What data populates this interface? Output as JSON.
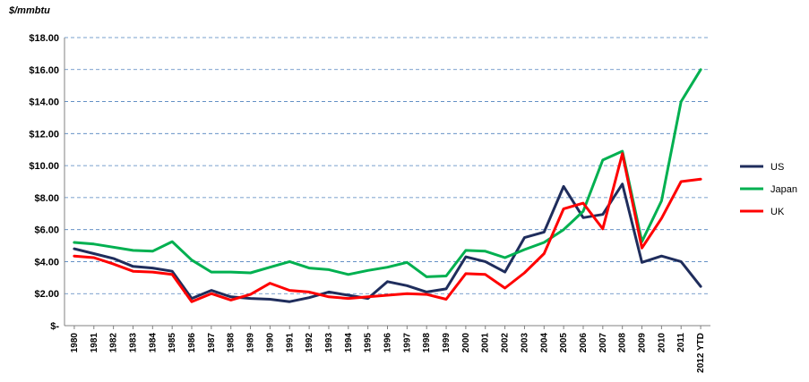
{
  "chart_data": {
    "type": "line",
    "unit_label": "$/mmbtu",
    "categories": [
      "1980",
      "1981",
      "1982",
      "1983",
      "1984",
      "1985",
      "1986",
      "1987",
      "1988",
      "1989",
      "1990",
      "1991",
      "1992",
      "1993",
      "1994",
      "1995",
      "1996",
      "1997",
      "1998",
      "1999",
      "2000",
      "2001",
      "2002",
      "2003",
      "2004",
      "2005",
      "2006",
      "2007",
      "2008",
      "2009",
      "2010",
      "2011",
      "2012 YTD"
    ],
    "y_ticks": [
      "$-",
      "$2.00",
      "$4.00",
      "$6.00",
      "$8.00",
      "$10.00",
      "$12.00",
      "$14.00",
      "$16.00",
      "$18.00"
    ],
    "ylim": [
      0,
      18
    ],
    "grid": true,
    "legend_position": "right",
    "series": [
      {
        "name": "US",
        "color": "#1f2d5c",
        "values": [
          4.8,
          4.5,
          4.2,
          3.7,
          3.6,
          3.4,
          1.7,
          2.2,
          1.8,
          1.7,
          1.65,
          1.5,
          1.75,
          2.1,
          1.9,
          1.7,
          2.75,
          2.5,
          2.1,
          2.3,
          4.3,
          4.0,
          3.35,
          5.5,
          5.85,
          8.7,
          6.75,
          6.95,
          8.85,
          3.95,
          4.35,
          4.0,
          2.45
        ]
      },
      {
        "name": "Japan",
        "color": "#00b050",
        "values": [
          5.2,
          5.1,
          4.9,
          4.7,
          4.65,
          5.25,
          4.1,
          3.35,
          3.35,
          3.3,
          3.65,
          4.0,
          3.6,
          3.5,
          3.2,
          3.45,
          3.65,
          3.95,
          3.05,
          3.1,
          4.7,
          4.65,
          4.25,
          4.75,
          5.2,
          6.0,
          7.15,
          10.35,
          10.9,
          5.25,
          7.8,
          14.0,
          16.0
        ]
      },
      {
        "name": "UK",
        "color": "#ff0000",
        "values": [
          4.35,
          4.25,
          3.85,
          3.4,
          3.35,
          3.2,
          1.5,
          2.0,
          1.6,
          1.95,
          2.65,
          2.2,
          2.1,
          1.8,
          1.7,
          1.8,
          1.9,
          2.0,
          1.95,
          1.65,
          3.25,
          3.2,
          2.35,
          3.3,
          4.5,
          7.3,
          7.65,
          6.05,
          10.75,
          4.85,
          6.7,
          9.0,
          9.15
        ]
      }
    ]
  }
}
